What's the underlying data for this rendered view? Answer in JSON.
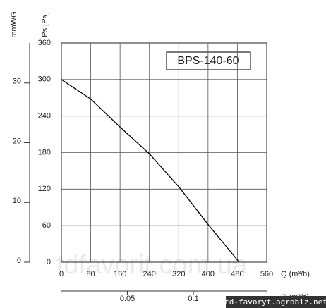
{
  "chart_data": {
    "type": "line",
    "legend_label": "BPS-140-60",
    "y_label": "Ps [Pa]",
    "y2_label": "mmWG",
    "x_label": "Q (m³/h)",
    "x2_label": "Q (m³/s)",
    "x": [
      0,
      80,
      160,
      240,
      320,
      400,
      485
    ],
    "series": [
      {
        "name": "BPS-140-60",
        "color": "#000000",
        "values": [
          300,
          268,
          222,
          178,
          124,
          62,
          0
        ]
      }
    ],
    "xlim": [
      0,
      560
    ],
    "xticks": [
      0,
      80,
      160,
      240,
      320,
      400,
      480,
      560
    ],
    "ylim": [
      0,
      360
    ],
    "yticks": [
      0,
      60,
      120,
      180,
      240,
      300,
      360
    ],
    "y2lim": [
      0,
      36.7
    ],
    "y2ticks": [
      0,
      10,
      20,
      30
    ],
    "x2lim": [
      0,
      0.15556
    ],
    "x2ticks": [
      0.05,
      0.1
    ],
    "grid": true,
    "watermark": "tdfavorit.com.ua",
    "badge": "td-favoryt.agrobiz.net"
  }
}
